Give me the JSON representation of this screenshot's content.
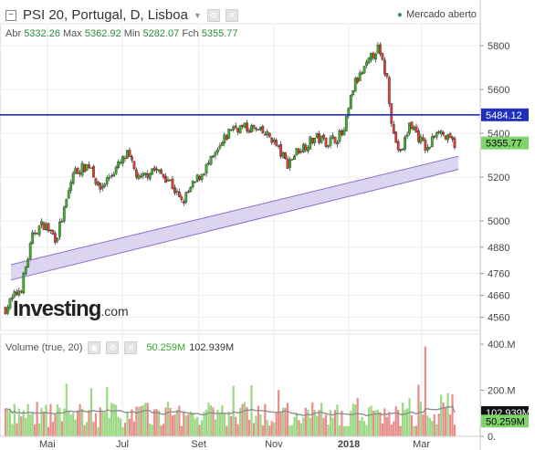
{
  "header": {
    "title": "PSI 20, Portugal, D, Lisboa",
    "status": "Mercado aberto",
    "ohlc": [
      {
        "label": "Abr",
        "value": "5332.26"
      },
      {
        "label": "Max",
        "value": "5362.92"
      },
      {
        "label": "Min",
        "value": "5282.07"
      },
      {
        "label": "Fch",
        "value": "5355.77"
      }
    ]
  },
  "logo": {
    "main": "Investing",
    "suffix": ".com"
  },
  "volume_header": {
    "label": "Volume (true, 20)",
    "value1": "50.259M",
    "value2": "102.939M"
  },
  "colors": {
    "up": "#3fae2a",
    "down": "#d9403a",
    "hline": "#1f2fbf",
    "channel_fill": "#d7d0ef",
    "channel_line": "#8e6cc7",
    "ma": "#8a8a8a",
    "vol_up": "#9bd884",
    "vol_down": "#e98c8c"
  },
  "chart_data": {
    "type": "candlestick",
    "price_axis": {
      "min": 4500,
      "max": 5900,
      "ticks": [
        4560,
        4660,
        4760,
        4880,
        5000,
        5200,
        5400,
        5600,
        5800
      ]
    },
    "volume_axis": {
      "ticks": [
        "400.M",
        "200.M",
        "0."
      ]
    },
    "x_ticks": [
      "Mai",
      "Jul",
      "Set",
      "Nov",
      "2018",
      "Mar"
    ],
    "horizontal_line": {
      "value": 5484.12,
      "label": "5484.12"
    },
    "last_price": {
      "value": 5355.77,
      "label": "5355.77"
    },
    "volume_labels": [
      {
        "value": 102.939,
        "label": "102.939M"
      },
      {
        "value": 50.259,
        "label": "50.259M"
      }
    ],
    "channel": {
      "start": {
        "date": "2017-03-28",
        "lower": 4730,
        "upper": 4800
      },
      "end": {
        "date": "2018-03-28",
        "lower": 5235,
        "upper": 5295
      }
    },
    "anchors": [
      {
        "date": "2017-03-28",
        "close": 4600
      },
      {
        "date": "2017-04-10",
        "close": 4700
      },
      {
        "date": "2017-04-20",
        "close": 4950
      },
      {
        "date": "2017-04-28",
        "close": 4985
      },
      {
        "date": "2017-05-08",
        "close": 4920
      },
      {
        "date": "2017-05-15",
        "close": 5050
      },
      {
        "date": "2017-05-22",
        "close": 5220
      },
      {
        "date": "2017-06-05",
        "close": 5260
      },
      {
        "date": "2017-06-12",
        "close": 5140
      },
      {
        "date": "2017-06-20",
        "close": 5200
      },
      {
        "date": "2017-07-05",
        "close": 5300
      },
      {
        "date": "2017-07-15",
        "close": 5180
      },
      {
        "date": "2017-07-25",
        "close": 5240
      },
      {
        "date": "2017-08-08",
        "close": 5190
      },
      {
        "date": "2017-08-18",
        "close": 5080
      },
      {
        "date": "2017-09-01",
        "close": 5200
      },
      {
        "date": "2017-09-15",
        "close": 5300
      },
      {
        "date": "2017-09-28",
        "close": 5430
      },
      {
        "date": "2017-10-15",
        "close": 5420
      },
      {
        "date": "2017-10-30",
        "close": 5380
      },
      {
        "date": "2017-11-12",
        "close": 5260
      },
      {
        "date": "2017-11-20",
        "close": 5320
      },
      {
        "date": "2017-12-05",
        "close": 5380
      },
      {
        "date": "2017-12-15",
        "close": 5360
      },
      {
        "date": "2017-12-28",
        "close": 5400
      },
      {
        "date": "2018-01-05",
        "close": 5620
      },
      {
        "date": "2018-01-15",
        "close": 5700
      },
      {
        "date": "2018-01-24",
        "close": 5795
      },
      {
        "date": "2018-02-01",
        "close": 5650
      },
      {
        "date": "2018-02-06",
        "close": 5400
      },
      {
        "date": "2018-02-12",
        "close": 5300
      },
      {
        "date": "2018-02-20",
        "close": 5450
      },
      {
        "date": "2018-02-27",
        "close": 5380
      },
      {
        "date": "2018-03-06",
        "close": 5320
      },
      {
        "date": "2018-03-14",
        "close": 5430
      },
      {
        "date": "2018-03-22",
        "close": 5370
      },
      {
        "date": "2018-03-28",
        "close": 5355.77
      }
    ]
  }
}
